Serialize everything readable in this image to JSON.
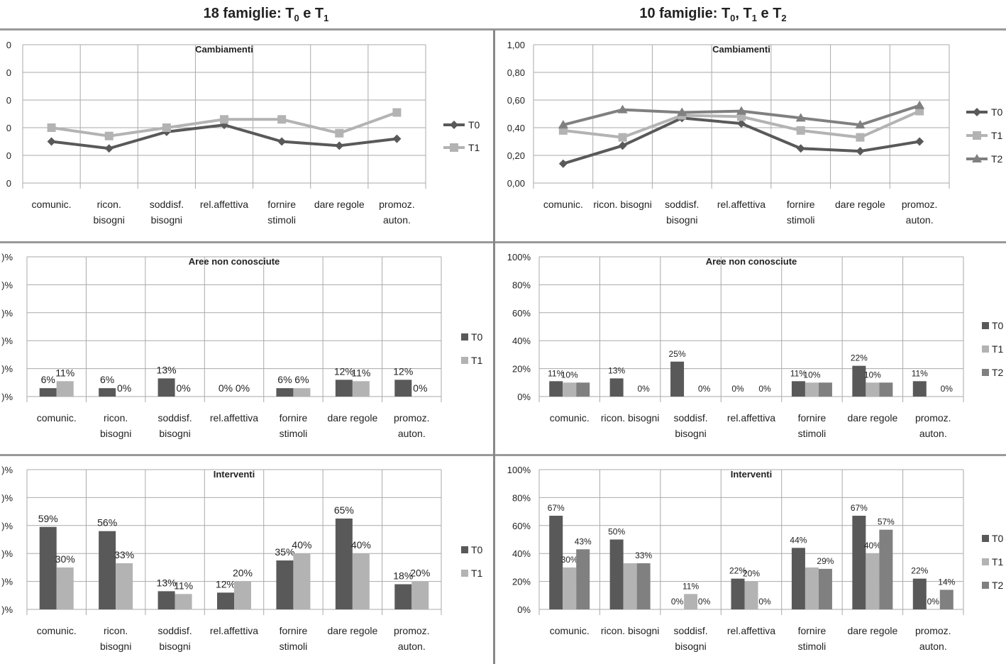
{
  "headers": {
    "left": {
      "main": "18 famiglie: T",
      "s0": "0",
      "mid": " e T",
      "s1": "1"
    },
    "right": {
      "main": "10 famiglie: T",
      "s0": "0",
      "c1": ", T",
      "s1": "1",
      "c2": " e T",
      "s2": "2"
    }
  },
  "colors": {
    "T0": "#595959",
    "T1": "#b3b3b3",
    "T2": "#808080",
    "grid": "#aaaaaa"
  },
  "chart_data": [
    {
      "id": "cambiamenti-left",
      "type": "line",
      "title": "Cambiamenti",
      "categories": [
        "comunic.",
        "ricon.\nbisogni",
        "soddisf.\nbisogni",
        "rel.affettiva",
        "fornire\nstimoli",
        "dare regole",
        "promoz.\nauton."
      ],
      "ylim": [
        0,
        1
      ],
      "yticks": [
        "0",
        "0",
        "0",
        "0",
        "0",
        "0"
      ],
      "series": [
        {
          "name": "T0",
          "values": [
            0.3,
            0.25,
            0.37,
            0.42,
            0.3,
            0.27,
            0.32
          ]
        },
        {
          "name": "T1",
          "values": [
            0.4,
            0.34,
            0.4,
            0.46,
            0.46,
            0.36,
            0.51
          ]
        }
      ]
    },
    {
      "id": "cambiamenti-right",
      "type": "line",
      "title": "Cambiamenti",
      "categories": [
        "comunic.",
        "ricon. bisogni",
        "soddisf.\nbisogni",
        "rel.affettiva",
        "fornire\nstimoli",
        "dare regole",
        "promoz.\nauton."
      ],
      "ylim": [
        0,
        1
      ],
      "yticks": [
        "0,00",
        "0,20",
        "0,40",
        "0,60",
        "0,80",
        "1,00"
      ],
      "series": [
        {
          "name": "T0",
          "values": [
            0.14,
            0.27,
            0.47,
            0.43,
            0.25,
            0.23,
            0.3
          ]
        },
        {
          "name": "T1",
          "values": [
            0.38,
            0.33,
            0.49,
            0.48,
            0.38,
            0.33,
            0.52
          ]
        },
        {
          "name": "T2",
          "values": [
            0.42,
            0.53,
            0.51,
            0.52,
            0.47,
            0.42,
            0.56
          ]
        }
      ]
    },
    {
      "id": "aree-left",
      "type": "bar",
      "title": "Aree non conosciute",
      "categories": [
        "comunic.",
        "ricon.\nbisogni",
        "soddisf.\nbisogni",
        "rel.affettiva",
        "fornire\nstimoli",
        "dare regole",
        "promoz.\nauton."
      ],
      "ylim": [
        0,
        100
      ],
      "yticks": [
        ")%",
        ")%",
        ")%",
        ")%",
        ")%",
        ")%"
      ],
      "series": [
        {
          "name": "T0",
          "values": [
            6,
            6,
            13,
            0,
            6,
            12,
            12
          ],
          "labels": [
            "6%",
            "6%",
            "13%",
            "0%",
            "6%",
            "12%",
            "12%"
          ]
        },
        {
          "name": "T1",
          "values": [
            11,
            0,
            0,
            0,
            6,
            11,
            0
          ],
          "labels": [
            "11%",
            "0%",
            "0%",
            "0%",
            "6%",
            "11%",
            "0%"
          ]
        }
      ]
    },
    {
      "id": "aree-right",
      "type": "bar",
      "title": "Aree non conosciute",
      "categories": [
        "comunic.",
        "ricon. bisogni",
        "soddisf.\nbisogni",
        "rel.affettiva",
        "fornire\nstimoli",
        "dare regole",
        "promoz.\nauton."
      ],
      "ylim": [
        0,
        100
      ],
      "yticks": [
        "0%",
        "20%",
        "40%",
        "60%",
        "80%",
        "100%"
      ],
      "series": [
        {
          "name": "T0",
          "values": [
            11,
            13,
            25,
            0,
            11,
            22,
            11
          ],
          "labels": [
            "11%",
            "13%",
            "25%",
            "0%",
            "11%",
            "22%",
            "11%"
          ]
        },
        {
          "name": "T1",
          "values": [
            10,
            0,
            0,
            0,
            10,
            10,
            0
          ],
          "labels": [
            "10%",
            "",
            "",
            "",
            "10%",
            "10%",
            ""
          ]
        },
        {
          "name": "T2",
          "values": [
            10,
            0,
            0,
            0,
            10,
            10,
            0
          ],
          "labels": [
            "",
            "0%",
            "0%",
            "0%",
            "",
            "",
            "0%"
          ]
        }
      ]
    },
    {
      "id": "interventi-left",
      "type": "bar",
      "title": "Interventi",
      "categories": [
        "comunic.",
        "ricon.\nbisogni",
        "soddisf.\nbisogni",
        "rel.affettiva",
        "fornire\nstimoli",
        "dare regole",
        "promoz.\nauton."
      ],
      "ylim": [
        0,
        100
      ],
      "yticks": [
        ")%",
        ")%",
        ")%",
        ")%",
        ")%",
        ")%"
      ],
      "series": [
        {
          "name": "T0",
          "values": [
            59,
            56,
            13,
            12,
            35,
            65,
            18
          ],
          "labels": [
            "59%",
            "56%",
            "13%",
            "12%",
            "35%",
            "65%",
            "18%"
          ]
        },
        {
          "name": "T1",
          "values": [
            30,
            33,
            11,
            20,
            40,
            40,
            20
          ],
          "labels": [
            "30%",
            "33%",
            "11%",
            "20%",
            "40%",
            "40%",
            "20%"
          ]
        }
      ]
    },
    {
      "id": "interventi-right",
      "type": "bar",
      "title": "Interventi",
      "categories": [
        "comunic.",
        "ricon. bisogni",
        "soddisf.\nbisogni",
        "rel.affettiva",
        "fornire\nstimoli",
        "dare regole",
        "promoz.\nauton."
      ],
      "ylim": [
        0,
        100
      ],
      "yticks": [
        "0%",
        "20%",
        "40%",
        "60%",
        "80%",
        "100%"
      ],
      "series": [
        {
          "name": "T0",
          "values": [
            67,
            50,
            0,
            22,
            44,
            67,
            22
          ],
          "labels": [
            "67%",
            "50%",
            "0%",
            "22%",
            "44%",
            "67%",
            "22%"
          ]
        },
        {
          "name": "T1",
          "values": [
            30,
            33,
            11,
            20,
            30,
            40,
            0
          ],
          "labels": [
            "30%",
            "",
            "11%",
            "20%",
            "",
            "40%",
            "0%"
          ]
        },
        {
          "name": "T2",
          "values": [
            43,
            33,
            0,
            0,
            29,
            57,
            14
          ],
          "labels": [
            "43%",
            "33%",
            "0%",
            "0%",
            "29%",
            "57%",
            "14%"
          ]
        }
      ]
    }
  ]
}
